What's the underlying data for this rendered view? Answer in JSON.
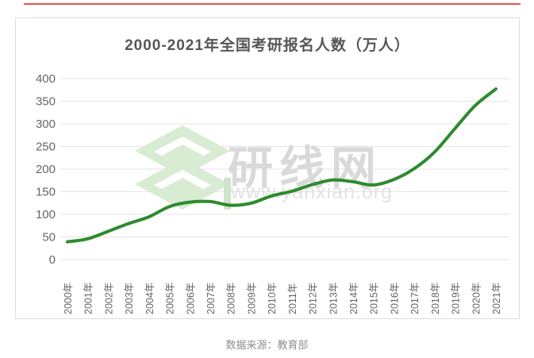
{
  "page": {
    "footer": "数据来源：教育部"
  },
  "watermark": {
    "name": "研线网",
    "url": "www.yanxian.org"
  },
  "colors": {
    "accent_red": "#e8514a",
    "line_green": "#2e8b2e",
    "grid": "#e3e3e3",
    "axis_text": "#666666",
    "title_text": "#565656",
    "card_border": "#dddddd",
    "footer_text": "#8f8f8f",
    "watermark_green": "#d8ebd3",
    "watermark_text": "#d9d9d9"
  },
  "chart_data": {
    "type": "line",
    "title": "2000-2021年全国考研报名人数（万人）",
    "categories": [
      "2000年",
      "2001年",
      "2002年",
      "2003年",
      "2004年",
      "2005年",
      "2006年",
      "2007年",
      "2008年",
      "2009年",
      "2010年",
      "2011年",
      "2012年",
      "2013年",
      "2014年",
      "2015年",
      "2016年",
      "2017年",
      "2018年",
      "2019年",
      "2020年",
      "2021年"
    ],
    "values": [
      39.2,
      46,
      62.4,
      79.7,
      94.5,
      117.2,
      127.1,
      128.2,
      120,
      124.6,
      140.6,
      151.1,
      165.6,
      176,
      172,
      164.9,
      177,
      201,
      238,
      290,
      341,
      377
    ],
    "ylabel": "",
    "xlabel": "",
    "ylim": [
      0,
      400
    ],
    "y_ticks": [
      0,
      50,
      100,
      150,
      200,
      250,
      300,
      350,
      400
    ],
    "grid": true,
    "legend": false,
    "line_color": "#2e8b2e",
    "grid_color": "#e3e3e3"
  }
}
